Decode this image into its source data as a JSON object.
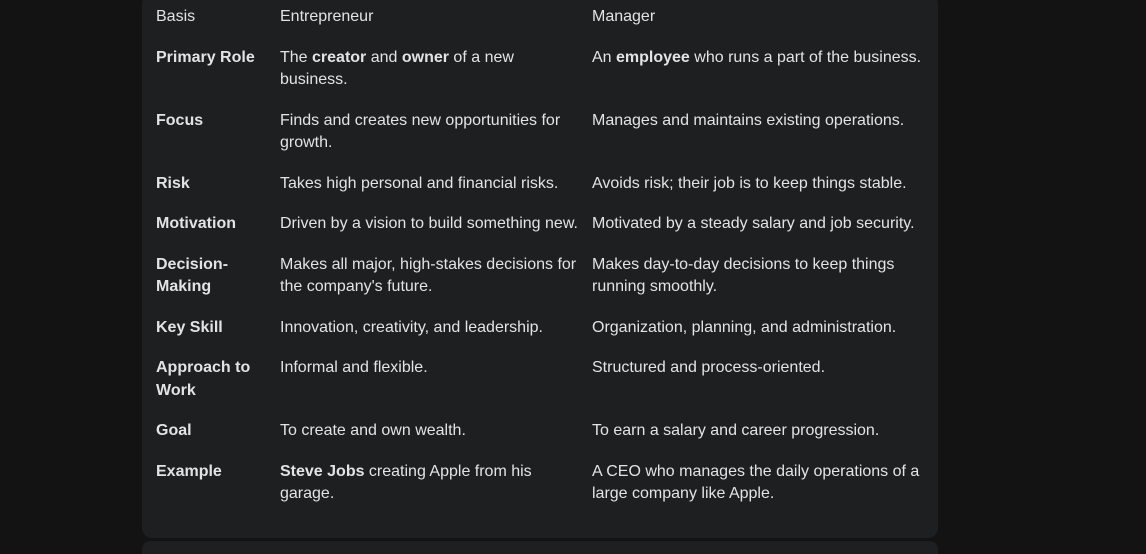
{
  "table": {
    "headers": [
      "Basis",
      "Entrepreneur",
      "Manager"
    ],
    "rows": [
      {
        "basis": "Primary Role",
        "entrepreneur": [
          "The ",
          {
            "b": "creator"
          },
          " and ",
          {
            "b": "owner"
          },
          " of a new business."
        ],
        "manager": [
          "An ",
          {
            "b": "employee"
          },
          " who runs a part of the business."
        ]
      },
      {
        "basis": "Focus",
        "entrepreneur": [
          "Finds and creates new opportunities for growth."
        ],
        "manager": [
          "Manages and maintains existing operations."
        ]
      },
      {
        "basis": "Risk",
        "entrepreneur": [
          "Takes high personal and financial risks."
        ],
        "manager": [
          "Avoids risk; their job is to keep things stable."
        ]
      },
      {
        "basis": "Motivation",
        "entrepreneur": [
          "Driven by a vision to build something new."
        ],
        "manager": [
          "Motivated by a steady salary and job security."
        ]
      },
      {
        "basis": "Decision-Making",
        "entrepreneur": [
          "Makes all major, high-stakes decisions for the company's future."
        ],
        "manager": [
          "Makes day-to-day decisions to keep things running smoothly."
        ]
      },
      {
        "basis": "Key Skill",
        "entrepreneur": [
          "Innovation, creativity, and leadership."
        ],
        "manager": [
          "Organization, planning, and administration."
        ]
      },
      {
        "basis": "Approach to Work",
        "entrepreneur": [
          "Informal and flexible."
        ],
        "manager": [
          "Structured and process-oriented."
        ]
      },
      {
        "basis": "Goal",
        "entrepreneur": [
          "To create and own wealth."
        ],
        "manager": [
          "To earn a salary and career progression."
        ]
      },
      {
        "basis": "Example",
        "entrepreneur": [
          {
            "b": "Steve Jobs"
          },
          " creating Apple from his garage."
        ],
        "manager": [
          "A CEO who manages the daily operations of a large company like Apple."
        ]
      }
    ]
  }
}
